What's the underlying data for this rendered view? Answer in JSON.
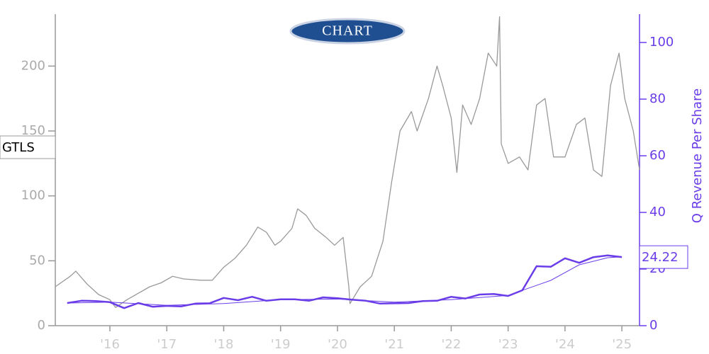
{
  "chart_data": {
    "type": "line",
    "logo": "CHART",
    "xlim": [
      2015.04,
      2025.31
    ],
    "xticks": [
      {
        "value": 2016,
        "label": "'16"
      },
      {
        "value": 2017,
        "label": "'17"
      },
      {
        "value": 2018,
        "label": "'18"
      },
      {
        "value": 2019,
        "label": "'19"
      },
      {
        "value": 2020,
        "label": "'20"
      },
      {
        "value": 2021,
        "label": "'21"
      },
      {
        "value": 2022,
        "label": "'22"
      },
      {
        "value": 2023,
        "label": "'23"
      },
      {
        "value": 2024,
        "label": "'24"
      },
      {
        "value": 2025,
        "label": "'25"
      }
    ],
    "ylim": [
      0,
      240
    ],
    "yticks": [
      0,
      50,
      100,
      150,
      200
    ],
    "y2lim": [
      0,
      110
    ],
    "y2ticks": [
      0,
      20,
      40,
      60,
      80,
      100
    ],
    "y2label": "Q Revenue Per Share",
    "series": [
      {
        "name": "GTLS",
        "color": "#999999",
        "x": [
          2015.04,
          2015.3,
          2015.4,
          2015.6,
          2015.8,
          2016.0,
          2016.1,
          2016.3,
          2016.5,
          2016.7,
          2016.9,
          2017.1,
          2017.3,
          2017.6,
          2017.8,
          2018.0,
          2018.2,
          2018.4,
          2018.6,
          2018.75,
          2018.9,
          2019.0,
          2019.2,
          2019.3,
          2019.45,
          2019.6,
          2019.8,
          2019.95,
          2020.1,
          2020.2,
          2020.22,
          2020.4,
          2020.6,
          2020.8,
          2020.95,
          2021.1,
          2021.3,
          2021.4,
          2021.6,
          2021.75,
          2021.85,
          2022.0,
          2022.1,
          2022.2,
          2022.35,
          2022.5,
          2022.65,
          2022.8,
          2022.85,
          2022.88,
          2023.0,
          2023.2,
          2023.35,
          2023.5,
          2023.65,
          2023.8,
          2024.0,
          2024.2,
          2024.35,
          2024.5,
          2024.65,
          2024.8,
          2024.95,
          2025.05,
          2025.2,
          2025.31
        ],
        "values": [
          30,
          38,
          42,
          32,
          24,
          20,
          14,
          20,
          25,
          30,
          33,
          38,
          36,
          35,
          35,
          45,
          52,
          62,
          76,
          72,
          62,
          65,
          75,
          90,
          85,
          75,
          68,
          62,
          68,
          30,
          17,
          30,
          38,
          65,
          110,
          150,
          165,
          150,
          175,
          200,
          185,
          160,
          118,
          170,
          155,
          175,
          210,
          200,
          238,
          140,
          125,
          130,
          120,
          170,
          175,
          130,
          130,
          155,
          160,
          120,
          115,
          185,
          210,
          175,
          150,
          120
        ]
      },
      {
        "color": "#6a3de8",
        "axis": "y2",
        "x": [
          2015.25,
          2015.5,
          2015.75,
          2016.0,
          2016.25,
          2016.5,
          2016.75,
          2017.0,
          2017.25,
          2017.5,
          2017.75,
          2018.0,
          2018.25,
          2018.5,
          2018.75,
          2019.0,
          2019.25,
          2019.5,
          2019.75,
          2020.0,
          2020.25,
          2020.5,
          2020.75,
          2021.0,
          2021.25,
          2021.5,
          2021.75,
          2022.0,
          2022.25,
          2022.5,
          2022.75,
          2023.0,
          2023.25,
          2023.5,
          2023.75,
          2024.0,
          2024.25,
          2024.5,
          2024.75,
          2025.0
        ],
        "values": [
          8.0,
          8.8,
          8.7,
          8.3,
          6.2,
          8.0,
          6.7,
          7.0,
          6.8,
          7.8,
          7.9,
          9.8,
          9.0,
          10.2,
          8.8,
          9.3,
          9.3,
          8.8,
          10.0,
          9.7,
          9.2,
          8.8,
          7.8,
          7.9,
          8.0,
          8.7,
          8.8,
          10.2,
          9.6,
          11.0,
          11.2,
          10.5,
          12.5,
          21.0,
          20.8,
          23.8,
          22.2,
          24.2,
          24.8,
          24.22
        ]
      },
      {
        "color": "#6a3de8",
        "axis": "y2",
        "x": [
          2015.25,
          2016.0,
          2017.0,
          2018.0,
          2019.0,
          2020.0,
          2021.0,
          2022.0,
          2023.0,
          2023.75,
          2024.25,
          2024.75,
          2025.0
        ],
        "values": [
          8.0,
          8.3,
          7.2,
          7.8,
          9.2,
          9.4,
          8.3,
          9.2,
          10.7,
          16.0,
          21.5,
          24.0,
          24.3
        ]
      }
    ]
  }
}
